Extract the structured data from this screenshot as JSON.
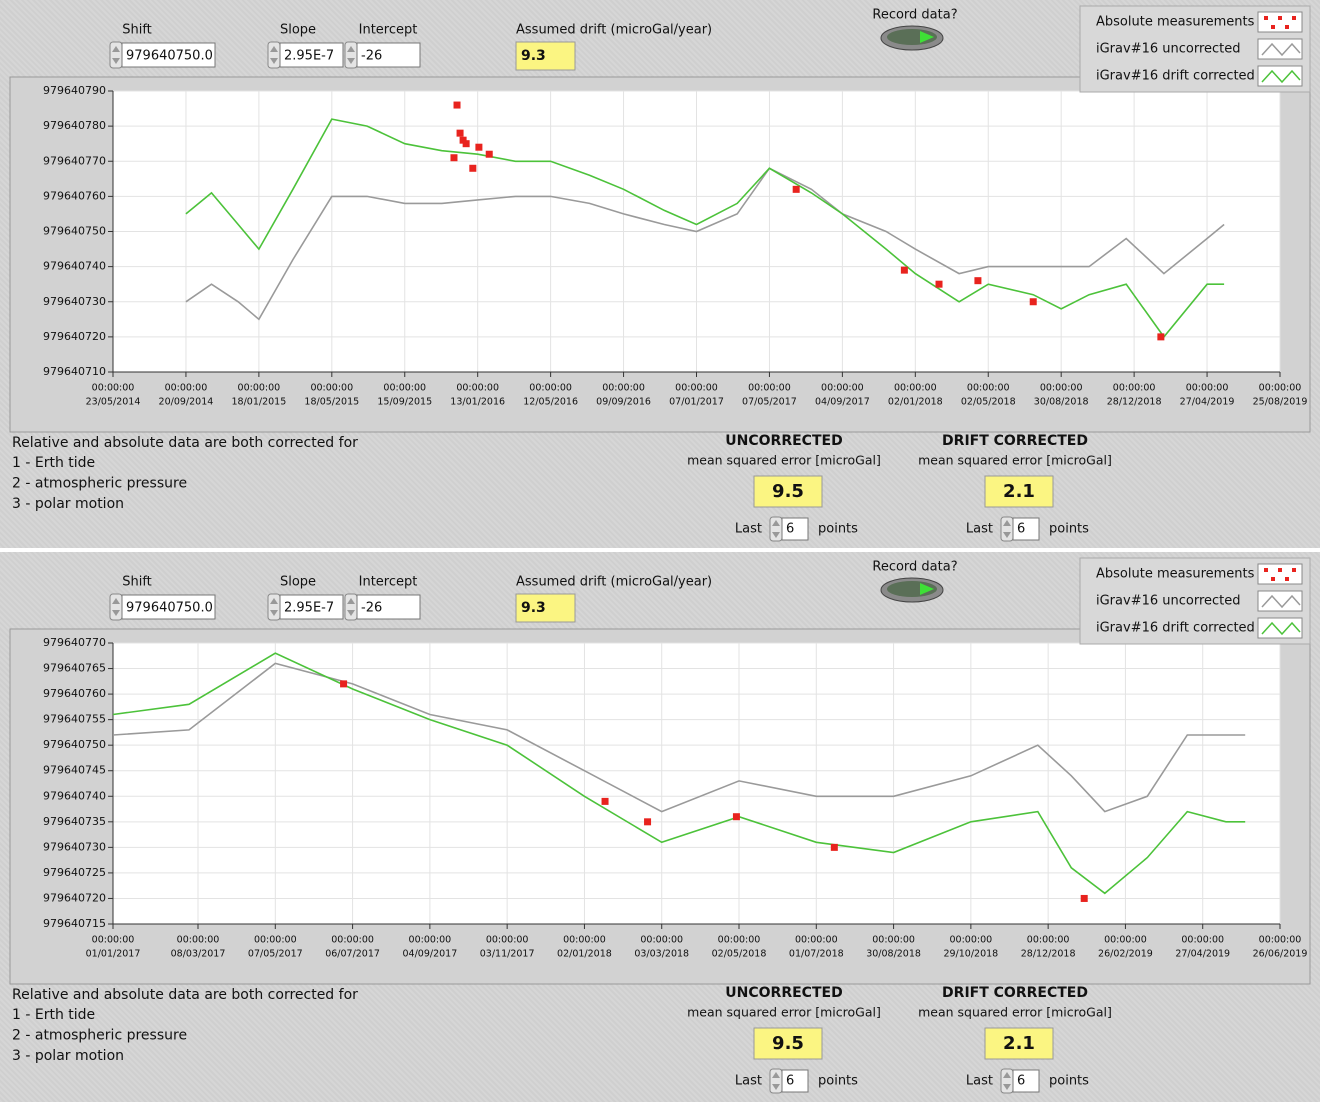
{
  "panels": [
    {
      "controls": {
        "shift": {
          "label": "Shift",
          "value": "979640750.0"
        },
        "slope": {
          "label": "Slope",
          "value": "2.95E-7"
        },
        "intercept": {
          "label": "Intercept",
          "value": "-26"
        },
        "drift": {
          "label": "Assumed drift (microGal/year)",
          "value": "9.3"
        },
        "record": {
          "label": "Record data?"
        }
      },
      "chart_data": {
        "type": "line",
        "grid": true,
        "legend": "top-right",
        "xlim": [
          "23/05/2014",
          "25/08/2019"
        ],
        "xticks": [
          {
            "time": "00:00:00",
            "date": "23/05/2014"
          },
          {
            "time": "00:00:00",
            "date": "20/09/2014"
          },
          {
            "time": "00:00:00",
            "date": "18/01/2015"
          },
          {
            "time": "00:00:00",
            "date": "18/05/2015"
          },
          {
            "time": "00:00:00",
            "date": "15/09/2015"
          },
          {
            "time": "00:00:00",
            "date": "13/01/2016"
          },
          {
            "time": "00:00:00",
            "date": "12/05/2016"
          },
          {
            "time": "00:00:00",
            "date": "09/09/2016"
          },
          {
            "time": "00:00:00",
            "date": "07/01/2017"
          },
          {
            "time": "00:00:00",
            "date": "07/05/2017"
          },
          {
            "time": "00:00:00",
            "date": "04/09/2017"
          },
          {
            "time": "00:00:00",
            "date": "02/01/2018"
          },
          {
            "time": "00:00:00",
            "date": "02/05/2018"
          },
          {
            "time": "00:00:00",
            "date": "30/08/2018"
          },
          {
            "time": "00:00:00",
            "date": "28/12/2018"
          },
          {
            "time": "00:00:00",
            "date": "27/04/2019"
          },
          {
            "time": "00:00:00",
            "date": "25/08/2019"
          }
        ],
        "ylim": [
          979640710,
          979640790
        ],
        "yticks": [
          979640710,
          979640720,
          979640730,
          979640740,
          979640750,
          979640760,
          979640770,
          979640780,
          979640790
        ],
        "series": [
          {
            "name": "Absolute measurements",
            "color": "#e8231e",
            "style": "points",
            "x": [
              "10/12/2015",
              "15/12/2015",
              "20/12/2015",
              "25/12/2015",
              "05/12/2015",
              "05/01/2016",
              "15/01/2016",
              "01/02/2016",
              "20/06/2017",
              "15/12/2017",
              "10/02/2018",
              "15/04/2018",
              "15/07/2018",
              "10/02/2019"
            ],
            "values": [
              979640786,
              979640778,
              979640776,
              979640775,
              979640771,
              979640768,
              979640774,
              979640772,
              979640762,
              979640739,
              979640735,
              979640736,
              979640730,
              979640720
            ]
          },
          {
            "name": "iGrav#16 uncorrected",
            "color": "#9a9a9a",
            "style": "line",
            "x": [
              "20/09/2014",
              "01/11/2014",
              "15/12/2014",
              "18/01/2015",
              "15/03/2015",
              "18/05/2015",
              "15/07/2015",
              "15/09/2015",
              "15/11/2015",
              "13/01/2016",
              "15/03/2016",
              "12/05/2016",
              "15/07/2016",
              "09/09/2016",
              "15/11/2016",
              "07/01/2017",
              "15/03/2017",
              "07/05/2017",
              "15/07/2017",
              "04/09/2017",
              "15/11/2017",
              "02/01/2018",
              "15/03/2018",
              "02/05/2018",
              "15/07/2018",
              "30/08/2018",
              "15/10/2018",
              "15/12/2018",
              "15/02/2019",
              "27/04/2019",
              "25/05/2019"
            ],
            "values": [
              979640730,
              979640735,
              979640730,
              979640725,
              979640742,
              979640760,
              979640760,
              979640758,
              979640758,
              979640759,
              979640760,
              979640760,
              979640758,
              979640755,
              979640752,
              979640750,
              979640755,
              979640768,
              979640762,
              979640755,
              979640750,
              979640745,
              979640738,
              979640740,
              979640740,
              979640740,
              979640740,
              979640748,
              979640738,
              979640748,
              979640752
            ]
          },
          {
            "name": "iGrav#16 drift corrected",
            "color": "#4cc23a",
            "style": "line",
            "x": [
              "20/09/2014",
              "01/11/2014",
              "15/12/2014",
              "18/01/2015",
              "15/03/2015",
              "18/05/2015",
              "15/07/2015",
              "15/09/2015",
              "15/11/2015",
              "13/01/2016",
              "15/03/2016",
              "12/05/2016",
              "15/07/2016",
              "09/09/2016",
              "15/11/2016",
              "07/01/2017",
              "15/03/2017",
              "07/05/2017",
              "15/07/2017",
              "04/09/2017",
              "15/11/2017",
              "02/01/2018",
              "15/03/2018",
              "02/05/2018",
              "15/07/2018",
              "30/08/2018",
              "15/10/2018",
              "15/12/2018",
              "15/02/2019",
              "27/04/2019",
              "25/05/2019"
            ],
            "values": [
              979640755,
              979640761,
              979640752,
              979640745,
              979640762,
              979640782,
              979640780,
              979640775,
              979640773,
              979640772,
              979640770,
              979640770,
              979640766,
              979640762,
              979640756,
              979640752,
              979640758,
              979640768,
              979640761,
              979640755,
              979640745,
              979640738,
              979640730,
              979640735,
              979640732,
              979640728,
              979640732,
              979640735,
              979640720,
              979640735,
              979640735
            ]
          }
        ]
      },
      "notes": {
        "title": "Relative and absolute data are both corrected for",
        "items": [
          "1 - Erth tide",
          "2 - atmospheric pressure",
          "3 - polar motion"
        ]
      },
      "stats": [
        {
          "title": "UNCORRECTED",
          "subtitle": "mean squared error [microGal]",
          "value": "9.5",
          "last_label": "Last",
          "last": "6",
          "unit": "points"
        },
        {
          "title": "DRIFT CORRECTED",
          "subtitle": "mean squared error [microGal]",
          "value": "2.1",
          "last_label": "Last",
          "last": "6",
          "unit": "points"
        }
      ]
    },
    {
      "controls": {
        "shift": {
          "label": "Shift",
          "value": "979640750.0"
        },
        "slope": {
          "label": "Slope",
          "value": "2.95E-7"
        },
        "intercept": {
          "label": "Intercept",
          "value": "-26"
        },
        "drift": {
          "label": "Assumed drift (microGal/year)",
          "value": "9.3"
        },
        "record": {
          "label": "Record data?"
        }
      },
      "chart_data": {
        "type": "line",
        "grid": true,
        "legend": "top-right",
        "xlim": [
          "01/01/2017",
          "26/06/2019"
        ],
        "xticks": [
          {
            "time": "00:00:00",
            "date": "01/01/2017"
          },
          {
            "time": "00:00:00",
            "date": "08/03/2017"
          },
          {
            "time": "00:00:00",
            "date": "07/05/2017"
          },
          {
            "time": "00:00:00",
            "date": "06/07/2017"
          },
          {
            "time": "00:00:00",
            "date": "04/09/2017"
          },
          {
            "time": "00:00:00",
            "date": "03/11/2017"
          },
          {
            "time": "00:00:00",
            "date": "02/01/2018"
          },
          {
            "time": "00:00:00",
            "date": "03/03/2018"
          },
          {
            "time": "00:00:00",
            "date": "02/05/2018"
          },
          {
            "time": "00:00:00",
            "date": "01/07/2018"
          },
          {
            "time": "00:00:00",
            "date": "30/08/2018"
          },
          {
            "time": "00:00:00",
            "date": "29/10/2018"
          },
          {
            "time": "00:00:00",
            "date": "28/12/2018"
          },
          {
            "time": "00:00:00",
            "date": "26/02/2019"
          },
          {
            "time": "00:00:00",
            "date": "27/04/2019"
          },
          {
            "time": "00:00:00",
            "date": "26/06/2019"
          }
        ],
        "ylim": [
          979640715,
          979640770
        ],
        "yticks": [
          979640715,
          979640720,
          979640725,
          979640730,
          979640735,
          979640740,
          979640745,
          979640750,
          979640755,
          979640760,
          979640765,
          979640770
        ],
        "series": [
          {
            "name": "Absolute measurements",
            "color": "#e8231e",
            "style": "points",
            "x": [
              "29/06/2017",
              "18/01/2018",
              "20/02/2018",
              "30/04/2018",
              "15/07/2018",
              "25/01/2019"
            ],
            "values": [
              979640762,
              979640739,
              979640735,
              979640736,
              979640730,
              979640720
            ]
          },
          {
            "name": "iGrav#16 uncorrected",
            "color": "#9a9a9a",
            "style": "line",
            "x": [
              "01/01/2017",
              "01/03/2017",
              "07/05/2017",
              "06/07/2017",
              "04/09/2017",
              "03/11/2017",
              "02/01/2018",
              "03/03/2018",
              "02/05/2018",
              "01/07/2018",
              "30/08/2018",
              "29/10/2018",
              "20/12/2018",
              "15/01/2019",
              "10/02/2019",
              "15/03/2019",
              "15/04/2019",
              "15/05/2019",
              "30/05/2019"
            ],
            "values": [
              979640752,
              979640753,
              979640766,
              979640762,
              979640756,
              979640753,
              979640745,
              979640737,
              979640743,
              979640740,
              979640740,
              979640744,
              979640750,
              979640744,
              979640737,
              979640740,
              979640752,
              979640752,
              979640752
            ]
          },
          {
            "name": "iGrav#16 drift corrected",
            "color": "#4cc23a",
            "style": "line",
            "x": [
              "01/01/2017",
              "01/03/2017",
              "07/05/2017",
              "06/07/2017",
              "04/09/2017",
              "03/11/2017",
              "02/01/2018",
              "03/03/2018",
              "02/05/2018",
              "01/07/2018",
              "30/08/2018",
              "29/10/2018",
              "20/12/2018",
              "15/01/2019",
              "10/02/2019",
              "15/03/2019",
              "15/04/2019",
              "15/05/2019",
              "30/05/2019"
            ],
            "values": [
              979640756,
              979640758,
              979640768,
              979640761,
              979640755,
              979640750,
              979640740,
              979640731,
              979640736,
              979640731,
              979640729,
              979640735,
              979640737,
              979640726,
              979640721,
              979640728,
              979640737,
              979640735,
              979640735
            ]
          }
        ]
      },
      "notes": {
        "title": "Relative and absolute data are both corrected for",
        "items": [
          "1 - Erth tide",
          "2 - atmospheric pressure",
          "3 - polar motion"
        ]
      },
      "stats": [
        {
          "title": "UNCORRECTED",
          "subtitle": "mean squared error [microGal]",
          "value": "9.5",
          "last_label": "Last",
          "last": "6",
          "unit": "points"
        },
        {
          "title": "DRIFT CORRECTED",
          "subtitle": "mean squared error [microGal]",
          "value": "2.1",
          "last_label": "Last",
          "last": "6",
          "unit": "points"
        }
      ]
    }
  ]
}
